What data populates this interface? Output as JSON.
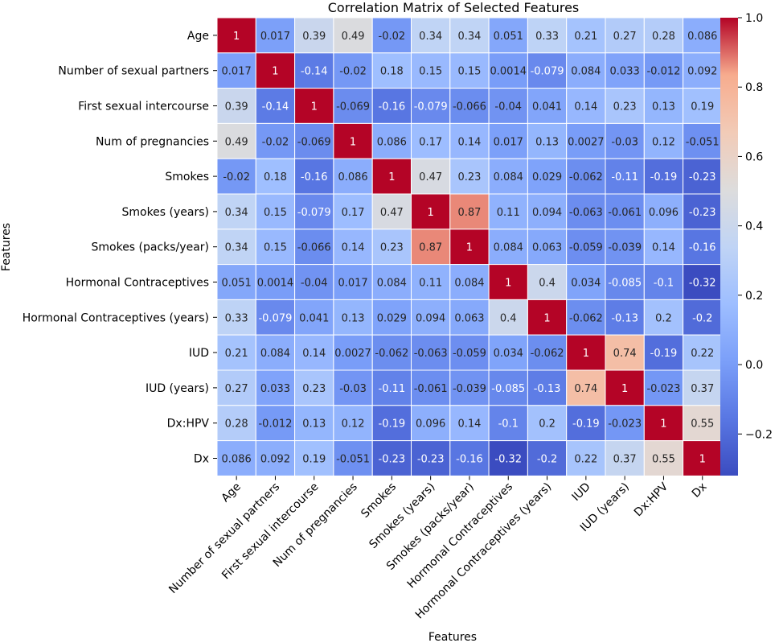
{
  "chart_data": {
    "type": "heatmap",
    "title": "Correlation Matrix of Selected Features",
    "xlabel": "Features",
    "ylabel": "Features",
    "labels": [
      "Age",
      "Number of sexual partners",
      "First sexual intercourse",
      "Num of pregnancies",
      "Smokes",
      "Smokes (years)",
      "Smokes (packs/year)",
      "Hormonal Contraceptives",
      "Hormonal Contraceptives (years)",
      "IUD",
      "IUD (years)",
      "Dx:HPV",
      "Dx"
    ],
    "matrix": [
      [
        "1",
        "0.017",
        "0.39",
        "0.49",
        "-0.02",
        "0.34",
        "0.34",
        "0.051",
        "0.33",
        "0.21",
        "0.27",
        "0.28",
        "0.086"
      ],
      [
        "0.017",
        "1",
        "-0.14",
        "-0.02",
        "0.18",
        "0.15",
        "0.15",
        "0.0014",
        "-0.079",
        "0.084",
        "0.033",
        "-0.012",
        "0.092"
      ],
      [
        "0.39",
        "-0.14",
        "1",
        "-0.069",
        "-0.16",
        "-0.079",
        "-0.066",
        "-0.04",
        "0.041",
        "0.14",
        "0.23",
        "0.13",
        "0.19"
      ],
      [
        "0.49",
        "-0.02",
        "-0.069",
        "1",
        "0.086",
        "0.17",
        "0.14",
        "0.017",
        "0.13",
        "0.0027",
        "-0.03",
        "0.12",
        "-0.051"
      ],
      [
        "-0.02",
        "0.18",
        "-0.16",
        "0.086",
        "1",
        "0.47",
        "0.23",
        "0.084",
        "0.029",
        "-0.062",
        "-0.11",
        "-0.19",
        "-0.23"
      ],
      [
        "0.34",
        "0.15",
        "-0.079",
        "0.17",
        "0.47",
        "1",
        "0.87",
        "0.11",
        "0.094",
        "-0.063",
        "-0.061",
        "0.096",
        "-0.23"
      ],
      [
        "0.34",
        "0.15",
        "-0.066",
        "0.14",
        "0.23",
        "0.87",
        "1",
        "0.084",
        "0.063",
        "-0.059",
        "-0.039",
        "0.14",
        "-0.16"
      ],
      [
        "0.051",
        "0.0014",
        "-0.04",
        "0.017",
        "0.084",
        "0.11",
        "0.084",
        "1",
        "0.4",
        "0.034",
        "-0.085",
        "-0.1",
        "-0.32"
      ],
      [
        "0.33",
        "-0.079",
        "0.041",
        "0.13",
        "0.029",
        "0.094",
        "0.063",
        "0.4",
        "1",
        "-0.062",
        "-0.13",
        "0.2",
        "-0.2"
      ],
      [
        "0.21",
        "0.084",
        "0.14",
        "0.0027",
        "-0.062",
        "-0.063",
        "-0.059",
        "0.034",
        "-0.062",
        "1",
        "0.74",
        "-0.19",
        "0.22"
      ],
      [
        "0.27",
        "0.033",
        "0.23",
        "-0.03",
        "-0.11",
        "-0.061",
        "-0.039",
        "-0.085",
        "-0.13",
        "0.74",
        "1",
        "-0.023",
        "0.37"
      ],
      [
        "0.28",
        "-0.012",
        "0.13",
        "0.12",
        "-0.19",
        "0.096",
        "0.14",
        "-0.1",
        "0.2",
        "-0.19",
        "-0.023",
        "1",
        "0.55"
      ],
      [
        "0.086",
        "0.092",
        "0.19",
        "-0.051",
        "-0.23",
        "-0.23",
        "-0.16",
        "-0.32",
        "-0.2",
        "0.22",
        "0.37",
        "0.55",
        "1"
      ]
    ],
    "colorbar": {
      "colormap": "coolwarm",
      "vmin": -0.32,
      "vmax": 1.0,
      "ticks": [
        "1.0",
        "0.8",
        "0.6",
        "0.4",
        "0.2",
        "0.0",
        "−0.2"
      ],
      "tick_values": [
        1.0,
        0.8,
        0.6,
        0.4,
        0.2,
        0.0,
        -0.2
      ]
    }
  }
}
